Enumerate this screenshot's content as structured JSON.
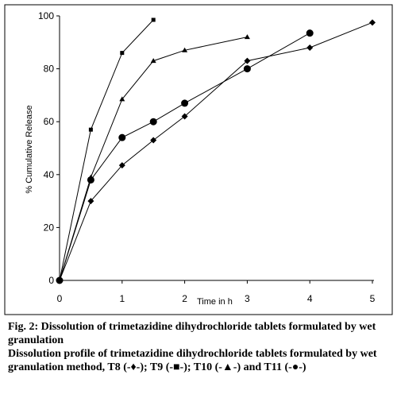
{
  "chart_data": {
    "type": "line",
    "title": "",
    "xlabel": "Time in h",
    "ylabel": "% Cumulative Release",
    "xlim": [
      0,
      5
    ],
    "ylim": [
      0,
      100
    ],
    "x_ticks": [
      "0",
      "1",
      "2",
      "3",
      "4",
      "5"
    ],
    "y_ticks": [
      "0",
      "20",
      "40",
      "60",
      "80",
      "100"
    ],
    "grid": false,
    "legend": "none",
    "series": [
      {
        "marker": "diamond",
        "color": "#000000",
        "x": [
          0,
          0.5,
          1,
          1.5,
          2,
          3,
          4,
          5
        ],
        "y": [
          0,
          30,
          43.5,
          53,
          62,
          83,
          88,
          97.5
        ]
      },
      {
        "marker": "square",
        "color": "#000000",
        "x": [
          0,
          0.5,
          1,
          1.5
        ],
        "y": [
          0,
          57,
          86,
          98.5
        ]
      },
      {
        "marker": "triangle",
        "color": "#000000",
        "x": [
          0,
          0.5,
          1,
          1.5,
          2,
          3
        ],
        "y": [
          0,
          39,
          68.5,
          83,
          87,
          92
        ]
      },
      {
        "marker": "circle",
        "color": "#000000",
        "x": [
          0,
          0.5,
          1,
          1.5,
          2,
          3,
          4
        ],
        "y": [
          0,
          38,
          54,
          60,
          67,
          80,
          93.5
        ]
      }
    ]
  },
  "caption": {
    "label": "Fig. 2:",
    "title": "Dissolution of trimetazidine dihydrochloride tablets formulated by wet granulation",
    "description": "Dissolution profile of trimetazidine dihydrochloride tablets formulated by wet granulation method, T8 (-♦-); T9 (-■-); T10 (-▲-) and T11 (-●-)"
  }
}
